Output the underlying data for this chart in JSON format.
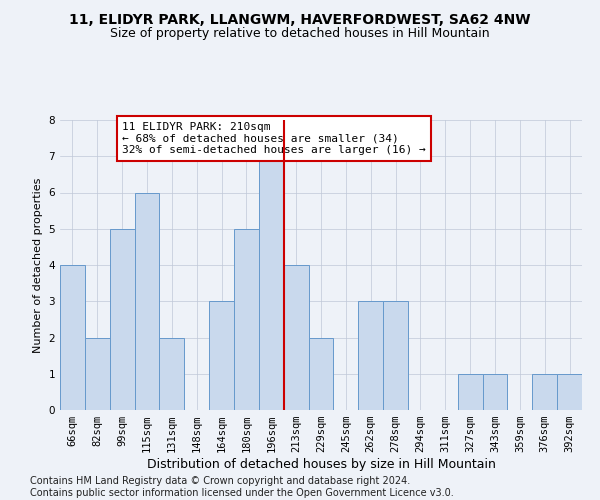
{
  "title1": "11, ELIDYR PARK, LLANGWM, HAVERFORDWEST, SA62 4NW",
  "title2": "Size of property relative to detached houses in Hill Mountain",
  "xlabel": "Distribution of detached houses by size in Hill Mountain",
  "ylabel": "Number of detached properties",
  "categories": [
    "66sqm",
    "82sqm",
    "99sqm",
    "115sqm",
    "131sqm",
    "148sqm",
    "164sqm",
    "180sqm",
    "196sqm",
    "213sqm",
    "229sqm",
    "245sqm",
    "262sqm",
    "278sqm",
    "294sqm",
    "311sqm",
    "327sqm",
    "343sqm",
    "359sqm",
    "376sqm",
    "392sqm"
  ],
  "values": [
    4,
    2,
    5,
    6,
    2,
    0,
    3,
    5,
    7,
    4,
    2,
    0,
    3,
    3,
    0,
    0,
    1,
    1,
    0,
    1,
    1
  ],
  "bar_color": "#c9d9ed",
  "bar_edge_color": "#6699cc",
  "vline_x": 8.5,
  "vline_color": "#cc0000",
  "annotation_text": "11 ELIDYR PARK: 210sqm\n← 68% of detached houses are smaller (34)\n32% of semi-detached houses are larger (16) →",
  "annotation_box_color": "#ffffff",
  "annotation_box_edge": "#cc0000",
  "ylim": [
    0,
    8
  ],
  "yticks": [
    0,
    1,
    2,
    3,
    4,
    5,
    6,
    7,
    8
  ],
  "footnote": "Contains HM Land Registry data © Crown copyright and database right 2024.\nContains public sector information licensed under the Open Government Licence v3.0.",
  "title1_fontsize": 10,
  "title2_fontsize": 9,
  "xlabel_fontsize": 9,
  "ylabel_fontsize": 8,
  "tick_fontsize": 7.5,
  "annotation_fontsize": 8,
  "footnote_fontsize": 7,
  "background_color": "#eef2f8"
}
